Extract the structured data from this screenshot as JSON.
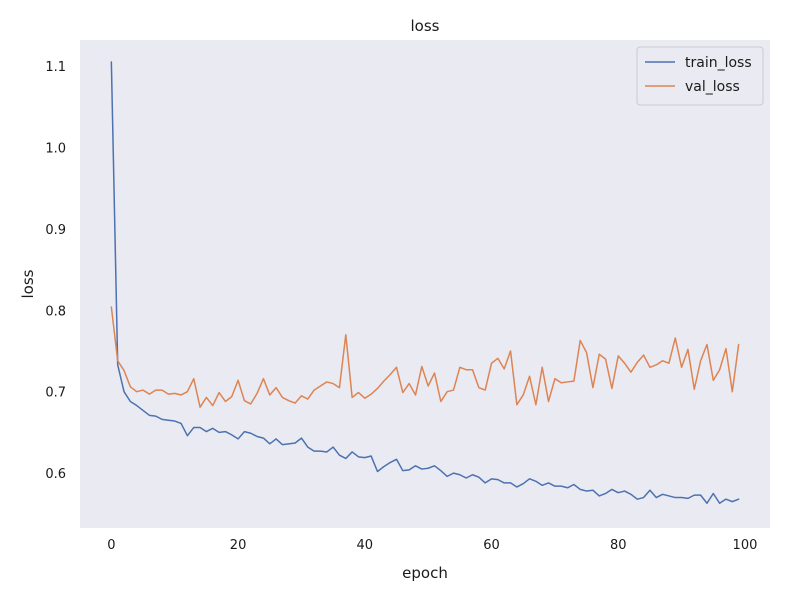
{
  "chart_data": {
    "type": "line",
    "title": "loss",
    "xlabel": "epoch",
    "ylabel": "loss",
    "xlim": [
      -4.95,
      103.95
    ],
    "ylim": [
      0.5326,
      1.132
    ],
    "xticks": [
      0,
      20,
      40,
      60,
      80,
      100
    ],
    "yticks": [
      0.6,
      0.7,
      0.8,
      0.9,
      1.0,
      1.1
    ],
    "xtick_labels": [
      "0",
      "20",
      "40",
      "60",
      "80",
      "100"
    ],
    "ytick_labels": [
      "0.6",
      "0.7",
      "0.8",
      "0.9",
      "1.0",
      "1.1"
    ],
    "grid": false,
    "legend_position": "top-right",
    "background": "#eaeaf2",
    "x": [
      0,
      1,
      2,
      3,
      4,
      5,
      6,
      7,
      8,
      9,
      10,
      11,
      12,
      13,
      14,
      15,
      16,
      17,
      18,
      19,
      20,
      21,
      22,
      23,
      24,
      25,
      26,
      27,
      28,
      29,
      30,
      31,
      32,
      33,
      34,
      35,
      36,
      37,
      38,
      39,
      40,
      41,
      42,
      43,
      44,
      45,
      46,
      47,
      48,
      49,
      50,
      51,
      52,
      53,
      54,
      55,
      56,
      57,
      58,
      59,
      60,
      61,
      62,
      63,
      64,
      65,
      66,
      67,
      68,
      69,
      70,
      71,
      72,
      73,
      74,
      75,
      76,
      77,
      78,
      79,
      80,
      81,
      82,
      83,
      84,
      85,
      86,
      87,
      88,
      89,
      90,
      91,
      92,
      93,
      94,
      95,
      96,
      97,
      98,
      99
    ],
    "series": [
      {
        "name": "train_loss",
        "color": "#4c72b0",
        "values": [
          1.105,
          0.733,
          0.7,
          0.688,
          0.683,
          0.677,
          0.671,
          0.67,
          0.666,
          0.665,
          0.664,
          0.661,
          0.646,
          0.656,
          0.656,
          0.651,
          0.655,
          0.65,
          0.651,
          0.647,
          0.642,
          0.651,
          0.649,
          0.645,
          0.643,
          0.636,
          0.642,
          0.635,
          0.636,
          0.637,
          0.643,
          0.632,
          0.627,
          0.627,
          0.626,
          0.632,
          0.622,
          0.618,
          0.626,
          0.62,
          0.619,
          0.621,
          0.602,
          0.608,
          0.613,
          0.617,
          0.603,
          0.604,
          0.609,
          0.605,
          0.606,
          0.609,
          0.603,
          0.596,
          0.6,
          0.598,
          0.594,
          0.598,
          0.595,
          0.588,
          0.593,
          0.592,
          0.588,
          0.588,
          0.583,
          0.587,
          0.593,
          0.59,
          0.585,
          0.588,
          0.584,
          0.584,
          0.582,
          0.586,
          0.58,
          0.578,
          0.579,
          0.572,
          0.575,
          0.58,
          0.576,
          0.578,
          0.574,
          0.568,
          0.57,
          0.579,
          0.57,
          0.574,
          0.572,
          0.57,
          0.57,
          0.569,
          0.573,
          0.573,
          0.563,
          0.575,
          0.563,
          0.568,
          0.565,
          0.568
        ]
      },
      {
        "name": "val_loss",
        "color": "#dd8452",
        "values": [
          0.804,
          0.738,
          0.726,
          0.706,
          0.7,
          0.702,
          0.697,
          0.702,
          0.702,
          0.697,
          0.698,
          0.696,
          0.7,
          0.716,
          0.681,
          0.693,
          0.683,
          0.699,
          0.688,
          0.694,
          0.714,
          0.689,
          0.685,
          0.698,
          0.716,
          0.696,
          0.705,
          0.693,
          0.689,
          0.686,
          0.695,
          0.691,
          0.702,
          0.707,
          0.712,
          0.71,
          0.705,
          0.77,
          0.693,
          0.699,
          0.692,
          0.697,
          0.704,
          0.713,
          0.721,
          0.73,
          0.699,
          0.71,
          0.696,
          0.731,
          0.707,
          0.723,
          0.688,
          0.7,
          0.702,
          0.73,
          0.727,
          0.727,
          0.705,
          0.702,
          0.735,
          0.741,
          0.728,
          0.75,
          0.684,
          0.696,
          0.719,
          0.684,
          0.73,
          0.688,
          0.716,
          0.711,
          0.712,
          0.713,
          0.763,
          0.748,
          0.705,
          0.746,
          0.74,
          0.704,
          0.744,
          0.735,
          0.724,
          0.736,
          0.745,
          0.73,
          0.733,
          0.738,
          0.735,
          0.766,
          0.73,
          0.752,
          0.703,
          0.738,
          0.758,
          0.714,
          0.727,
          0.753,
          0.7,
          0.758
        ]
      }
    ]
  }
}
